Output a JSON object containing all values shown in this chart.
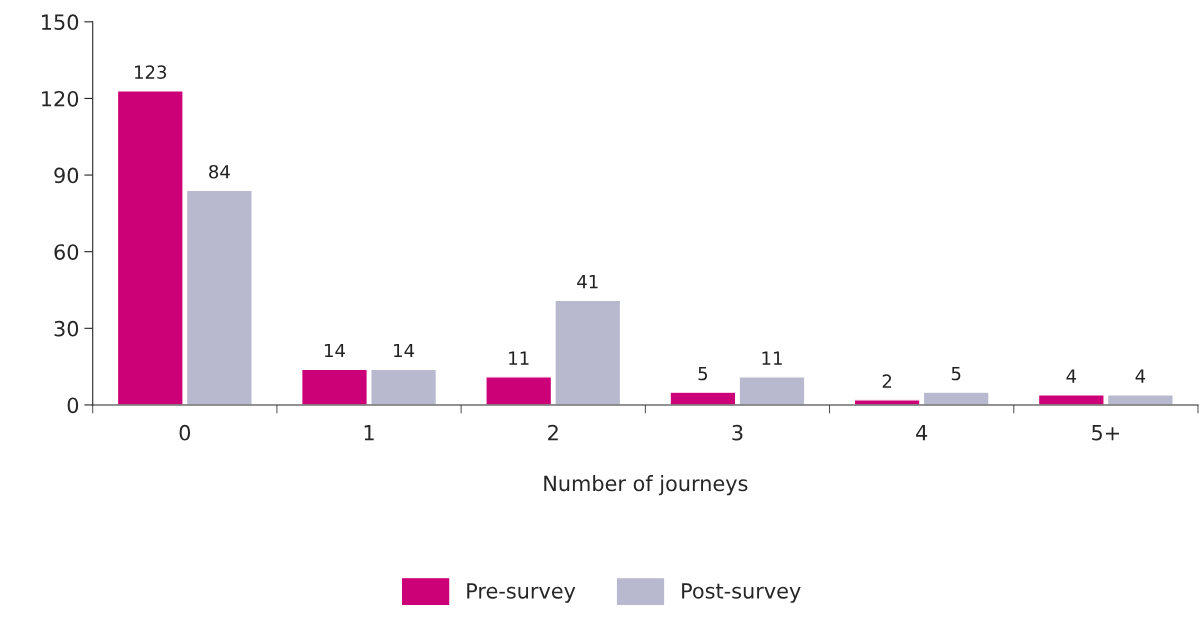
{
  "chart_data": {
    "type": "bar",
    "xlabel": "Number of journeys",
    "categories": [
      "0",
      "1",
      "2",
      "3",
      "4",
      "5+"
    ],
    "series": [
      {
        "name": "Pre-survey",
        "color": "#cc0077",
        "values": [
          123,
          14,
          11,
          5,
          2,
          4
        ]
      },
      {
        "name": "Post-survey",
        "color": "#b8b9cf",
        "values": [
          84,
          14,
          41,
          11,
          5,
          4
        ]
      }
    ],
    "ylim": [
      0,
      150
    ],
    "yticks": [
      0,
      30,
      60,
      90,
      120,
      150
    ],
    "data_labels": true,
    "grid": false,
    "legend": "bottom"
  }
}
